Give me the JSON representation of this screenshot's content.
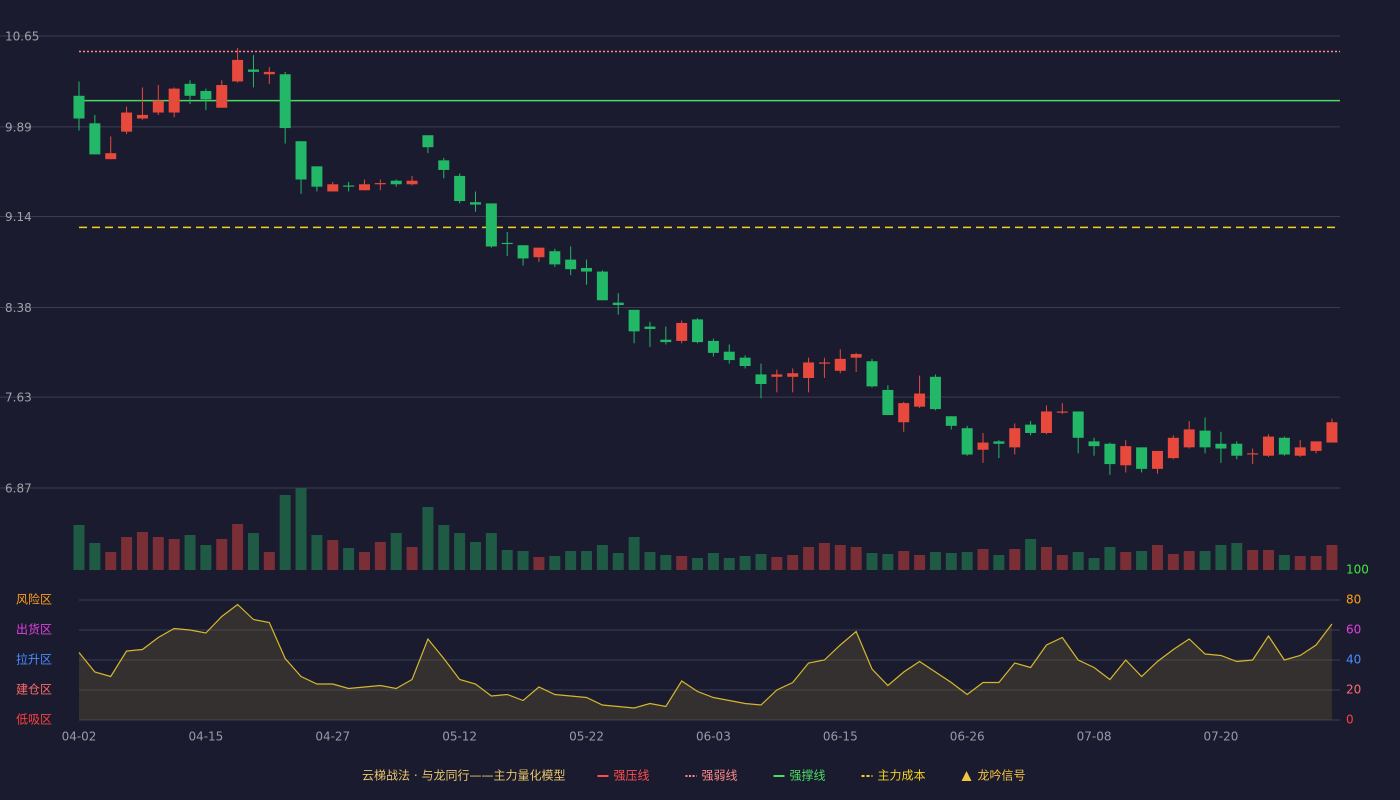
{
  "chart_data": [
    {
      "type": "candlestick",
      "open": [
        10.15,
        9.92,
        9.62,
        9.85,
        9.96,
        10.01,
        10.01,
        10.25,
        10.19,
        10.05,
        10.27,
        10.37,
        10.33,
        10.33,
        9.77,
        9.56,
        9.35,
        9.4,
        9.36,
        9.41,
        9.44,
        9.41,
        9.82,
        9.61,
        9.48,
        9.26,
        9.25,
        8.92,
        8.9,
        8.8,
        8.85,
        8.78,
        8.71,
        8.68,
        8.42,
        8.36,
        8.22,
        8.11,
        8.1,
        8.28,
        8.1,
        8.01,
        7.96,
        7.82,
        7.8,
        7.8,
        7.79,
        7.91,
        7.85,
        7.96,
        7.93,
        7.69,
        7.42,
        7.55,
        7.8,
        7.47,
        7.37,
        7.19,
        7.26,
        7.21,
        7.4,
        7.33,
        7.5,
        7.51,
        7.26,
        7.24,
        7.06,
        7.21,
        7.03,
        7.12,
        7.21,
        7.35,
        7.24,
        7.24,
        7.15,
        7.14,
        7.29,
        7.14,
        7.18,
        7.25
      ],
      "high": [
        10.27,
        9.99,
        9.81,
        10.06,
        10.22,
        10.24,
        10.22,
        10.28,
        10.21,
        10.28,
        10.55,
        10.49,
        10.39,
        10.35,
        9.77,
        9.56,
        9.43,
        9.43,
        9.45,
        9.45,
        9.45,
        9.48,
        9.82,
        9.63,
        9.5,
        9.35,
        9.25,
        9.01,
        8.9,
        8.88,
        8.87,
        8.89,
        8.78,
        8.69,
        8.5,
        8.36,
        8.26,
        8.22,
        8.27,
        8.29,
        8.12,
        8.07,
        7.98,
        7.91,
        7.86,
        7.87,
        7.96,
        7.96,
        8.03,
        8.0,
        7.95,
        7.73,
        7.59,
        7.81,
        7.82,
        7.47,
        7.39,
        7.33,
        7.27,
        7.41,
        7.43,
        7.56,
        7.58,
        7.51,
        7.29,
        7.25,
        7.27,
        7.21,
        7.18,
        7.31,
        7.43,
        7.46,
        7.34,
        7.26,
        7.2,
        7.32,
        7.3,
        7.27,
        7.26,
        7.45
      ],
      "low": [
        9.86,
        9.66,
        9.62,
        9.83,
        9.95,
        9.99,
        9.97,
        10.08,
        10.03,
        10.05,
        10.26,
        10.22,
        10.25,
        9.75,
        9.33,
        9.35,
        9.35,
        9.35,
        9.36,
        9.36,
        9.39,
        9.4,
        9.67,
        9.46,
        9.25,
        9.18,
        8.88,
        8.81,
        8.73,
        8.76,
        8.72,
        8.65,
        8.57,
        8.44,
        8.32,
        8.08,
        8.05,
        8.07,
        8.08,
        8.08,
        7.97,
        7.91,
        7.87,
        7.62,
        7.67,
        7.67,
        7.67,
        7.79,
        7.83,
        7.84,
        7.71,
        7.48,
        7.34,
        7.54,
        7.52,
        7.36,
        7.14,
        7.08,
        7.12,
        7.15,
        7.31,
        7.32,
        7.49,
        7.16,
        7.14,
        6.98,
        7.0,
        7.0,
        6.99,
        7.11,
        7.2,
        7.16,
        7.08,
        7.11,
        7.07,
        7.13,
        7.14,
        7.13,
        7.16,
        7.25
      ],
      "close": [
        9.96,
        9.66,
        9.67,
        10.01,
        9.99,
        10.11,
        10.21,
        10.15,
        10.12,
        10.24,
        10.45,
        10.35,
        10.35,
        9.88,
        9.45,
        9.39,
        9.41,
        9.39,
        9.41,
        9.42,
        9.41,
        9.44,
        9.72,
        9.53,
        9.27,
        9.24,
        8.89,
        8.91,
        8.79,
        8.88,
        8.74,
        8.7,
        8.68,
        8.44,
        8.4,
        8.18,
        8.2,
        8.09,
        8.25,
        8.09,
        8.0,
        7.94,
        7.89,
        7.74,
        7.82,
        7.83,
        7.92,
        7.92,
        7.95,
        7.99,
        7.72,
        7.48,
        7.58,
        7.66,
        7.53,
        7.39,
        7.15,
        7.25,
        7.24,
        7.37,
        7.33,
        7.51,
        7.51,
        7.29,
        7.22,
        7.07,
        7.22,
        7.03,
        7.18,
        7.29,
        7.36,
        7.21,
        7.2,
        7.14,
        7.16,
        7.3,
        7.15,
        7.21,
        7.26,
        7.42
      ],
      "up_color": "#e8493d",
      "down_color": "#22b868",
      "ylim": [
        6.87,
        10.65
      ],
      "yticks": [
        6.87,
        7.63,
        8.38,
        9.14,
        9.89,
        10.65
      ],
      "grid": true,
      "legend_title": "云梯战法 · 与龙同行——主力量化模型",
      "series": [
        {
          "name": "强压线",
          "color": "#ff4d4f",
          "style": "solid"
        },
        {
          "name": "强弱线",
          "color": "#ff8a8a",
          "style": "dotted",
          "value": 10.52
        },
        {
          "name": "强撑线",
          "color": "#4cd964",
          "style": "solid",
          "value": 10.11
        },
        {
          "name": "主力成本",
          "color": "#f5d020",
          "style": "dashed",
          "value": 9.05
        },
        {
          "name": "龙吟信号",
          "color": "#f5c242",
          "style": "triangle"
        }
      ]
    },
    {
      "type": "bar",
      "values": [
        45,
        27,
        18,
        33,
        38,
        33,
        31,
        35,
        25,
        31,
        46,
        37,
        18,
        75,
        82,
        35,
        30,
        22,
        18,
        28,
        37,
        23,
        63,
        45,
        37,
        28,
        37,
        20,
        19,
        13,
        14,
        19,
        19,
        25,
        17,
        33,
        18,
        15,
        14,
        12,
        17,
        12,
        14,
        16,
        13,
        15,
        23,
        27,
        25,
        23,
        17,
        16,
        19,
        15,
        18,
        17,
        18,
        21,
        15,
        21,
        31,
        23,
        15,
        18,
        12,
        23,
        18,
        19,
        25,
        16,
        19,
        19,
        25,
        27,
        20,
        20,
        15,
        14,
        14,
        25
      ],
      "up_color": "#7a2e36",
      "down_color": "#1f5a44"
    },
    {
      "type": "area",
      "categories": [
        "04-02",
        null,
        null,
        null,
        null,
        null,
        null,
        null,
        "04-15",
        null,
        null,
        null,
        null,
        null,
        null,
        null,
        "04-27",
        null,
        null,
        null,
        null,
        null,
        null,
        null,
        "05-12",
        null,
        null,
        null,
        null,
        null,
        null,
        null,
        "05-22",
        null,
        null,
        null,
        null,
        null,
        null,
        null,
        "06-03",
        null,
        null,
        null,
        null,
        null,
        null,
        null,
        "06-15",
        null,
        null,
        null,
        null,
        null,
        null,
        null,
        "06-26",
        null,
        null,
        null,
        null,
        null,
        null,
        null,
        "07-08",
        null,
        null,
        null,
        null,
        null,
        null,
        null,
        "07-20",
        null,
        null,
        null,
        null,
        null,
        null,
        null
      ],
      "values": [
        45,
        32,
        29,
        46,
        47,
        55,
        61,
        60,
        58,
        69,
        77,
        67,
        65,
        41,
        29,
        24,
        24,
        21,
        22,
        23,
        21,
        27,
        54,
        41,
        27,
        24,
        16,
        17,
        13,
        22,
        17,
        16,
        15,
        10,
        9,
        8,
        11,
        9,
        26,
        19,
        15,
        13,
        11,
        10,
        20,
        25,
        38,
        40,
        50,
        59,
        34,
        23,
        32,
        39,
        32,
        25,
        17,
        25,
        25,
        38,
        35,
        50,
        55,
        40,
        35,
        27,
        40,
        29,
        39,
        47,
        54,
        44,
        43,
        39,
        40,
        56,
        40,
        43,
        50,
        64
      ],
      "color": "#d6b72c",
      "ylim": [
        0,
        100
      ],
      "yticks": [
        0,
        20,
        40,
        60,
        80,
        100
      ],
      "ytick_colors": [
        "#ff4040",
        "#ff6a6a",
        "#4a8cff",
        "#e040e0",
        "#ff9f1a",
        "#3ee83e"
      ],
      "grid": true,
      "zones": [
        {
          "label": "风险区",
          "value": 80,
          "color": "#ff9f1a"
        },
        {
          "label": "出货区",
          "value": 60,
          "color": "#e040e0"
        },
        {
          "label": "拉升区",
          "value": 40,
          "color": "#4a8cff"
        },
        {
          "label": "建仓区",
          "value": 20,
          "color": "#ff6a6a"
        },
        {
          "label": "低吸区",
          "value": 0,
          "color": "#ff4040"
        }
      ]
    }
  ]
}
